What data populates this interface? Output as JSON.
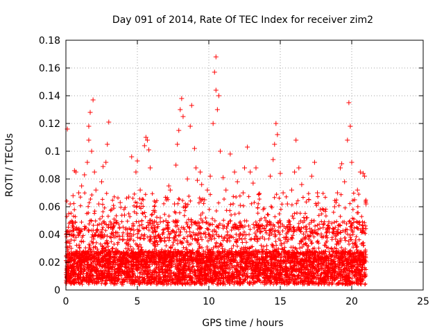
{
  "chart_data": {
    "type": "scatter",
    "title": "Day 091 of 2014, Rate Of TEC Index for receiver zim2",
    "xlabel": "GPS time / hours",
    "ylabel": "ROTI / TECUs",
    "xlim": [
      0,
      25
    ],
    "ylim": [
      0,
      0.18
    ],
    "xticks": [
      0,
      5,
      10,
      15,
      20,
      25
    ],
    "yticks": [
      0,
      0.02,
      0.04,
      0.06,
      0.08,
      0.1,
      0.12,
      0.14,
      0.16,
      0.18
    ],
    "xtick_labels": [
      "0",
      "5",
      "10",
      "15",
      "20",
      "25"
    ],
    "ytick_labels": [
      "0",
      "0.02",
      "0.04",
      "0.06",
      "0.08",
      "0.1",
      "0.12",
      "0.14",
      "0.16",
      "0.18"
    ],
    "grid": true,
    "marker": "plus",
    "color": "#ff0000",
    "series": [
      {
        "points": [
          [
            0.1,
            0.116
          ],
          [
            0.2,
            0.055
          ],
          [
            0.3,
            0.062
          ],
          [
            0.5,
            0.068
          ],
          [
            0.6,
            0.086
          ],
          [
            0.7,
            0.085
          ],
          [
            0.9,
            0.07
          ],
          [
            1.1,
            0.075
          ],
          [
            1.3,
            0.083
          ],
          [
            1.5,
            0.092
          ],
          [
            1.6,
            0.108
          ],
          [
            1.6,
            0.118
          ],
          [
            1.7,
            0.128
          ],
          [
            1.8,
            0.1
          ],
          [
            1.9,
            0.137
          ],
          [
            2.0,
            0.085
          ],
          [
            2.1,
            0.072
          ],
          [
            2.3,
            0.062
          ],
          [
            2.5,
            0.078
          ],
          [
            2.6,
            0.089
          ],
          [
            2.8,
            0.092
          ],
          [
            2.9,
            0.105
          ],
          [
            3.0,
            0.121
          ],
          [
            3.2,
            0.058
          ],
          [
            3.5,
            0.05
          ],
          [
            3.8,
            0.063
          ],
          [
            4.1,
            0.054
          ],
          [
            4.4,
            0.067
          ],
          [
            4.6,
            0.096
          ],
          [
            4.9,
            0.085
          ],
          [
            5.0,
            0.093
          ],
          [
            5.2,
            0.072
          ],
          [
            5.4,
            0.065
          ],
          [
            5.5,
            0.104
          ],
          [
            5.6,
            0.11
          ],
          [
            5.7,
            0.108
          ],
          [
            5.8,
            0.101
          ],
          [
            5.9,
            0.088
          ],
          [
            6.2,
            0.056
          ],
          [
            6.6,
            0.052
          ],
          [
            7.0,
            0.05
          ],
          [
            7.2,
            0.075
          ],
          [
            7.3,
            0.072
          ],
          [
            7.6,
            0.062
          ],
          [
            7.7,
            0.09
          ],
          [
            7.8,
            0.105
          ],
          [
            7.9,
            0.115
          ],
          [
            8.0,
            0.13
          ],
          [
            8.1,
            0.138
          ],
          [
            8.2,
            0.125
          ],
          [
            8.5,
            0.08
          ],
          [
            8.7,
            0.118
          ],
          [
            8.8,
            0.133
          ],
          [
            9.0,
            0.102
          ],
          [
            9.1,
            0.088
          ],
          [
            9.2,
            0.079
          ],
          [
            9.4,
            0.085
          ],
          [
            9.5,
            0.076
          ],
          [
            9.7,
            0.065
          ],
          [
            9.9,
            0.072
          ],
          [
            10.1,
            0.082
          ],
          [
            10.3,
            0.12
          ],
          [
            10.4,
            0.157
          ],
          [
            10.5,
            0.168
          ],
          [
            10.5,
            0.144
          ],
          [
            10.6,
            0.13
          ],
          [
            10.7,
            0.14
          ],
          [
            10.8,
            0.1
          ],
          [
            11.0,
            0.081
          ],
          [
            11.2,
            0.072
          ],
          [
            11.5,
            0.098
          ],
          [
            11.8,
            0.085
          ],
          [
            12.0,
            0.078
          ],
          [
            12.2,
            0.061
          ],
          [
            12.4,
            0.07
          ],
          [
            12.5,
            0.088
          ],
          [
            12.7,
            0.103
          ],
          [
            12.9,
            0.085
          ],
          [
            13.1,
            0.077
          ],
          [
            13.3,
            0.088
          ],
          [
            13.5,
            0.069
          ],
          [
            13.8,
            0.058
          ],
          [
            14.0,
            0.05
          ],
          [
            14.3,
            0.082
          ],
          [
            14.5,
            0.094
          ],
          [
            14.6,
            0.105
          ],
          [
            14.7,
            0.12
          ],
          [
            14.8,
            0.112
          ],
          [
            15.0,
            0.084
          ],
          [
            15.2,
            0.07
          ],
          [
            15.5,
            0.062
          ],
          [
            15.8,
            0.072
          ],
          [
            16.0,
            0.085
          ],
          [
            16.1,
            0.108
          ],
          [
            16.3,
            0.088
          ],
          [
            16.5,
            0.076
          ],
          [
            16.7,
            0.05
          ],
          [
            17.0,
            0.065
          ],
          [
            17.2,
            0.082
          ],
          [
            17.4,
            0.092
          ],
          [
            17.6,
            0.07
          ],
          [
            17.8,
            0.058
          ],
          [
            18.0,
            0.045
          ],
          [
            18.3,
            0.044
          ],
          [
            18.6,
            0.048
          ],
          [
            18.8,
            0.06
          ],
          [
            19.0,
            0.07
          ],
          [
            19.2,
            0.088
          ],
          [
            19.3,
            0.091
          ],
          [
            19.5,
            0.078
          ],
          [
            19.7,
            0.108
          ],
          [
            19.8,
            0.135
          ],
          [
            19.9,
            0.118
          ],
          [
            20.0,
            0.092
          ],
          [
            20.2,
            0.065
          ],
          [
            20.4,
            0.072
          ],
          [
            20.6,
            0.085
          ],
          [
            20.8,
            0.084
          ],
          [
            20.9,
            0.082
          ],
          [
            21.0,
            0.062
          ]
        ]
      }
    ]
  }
}
